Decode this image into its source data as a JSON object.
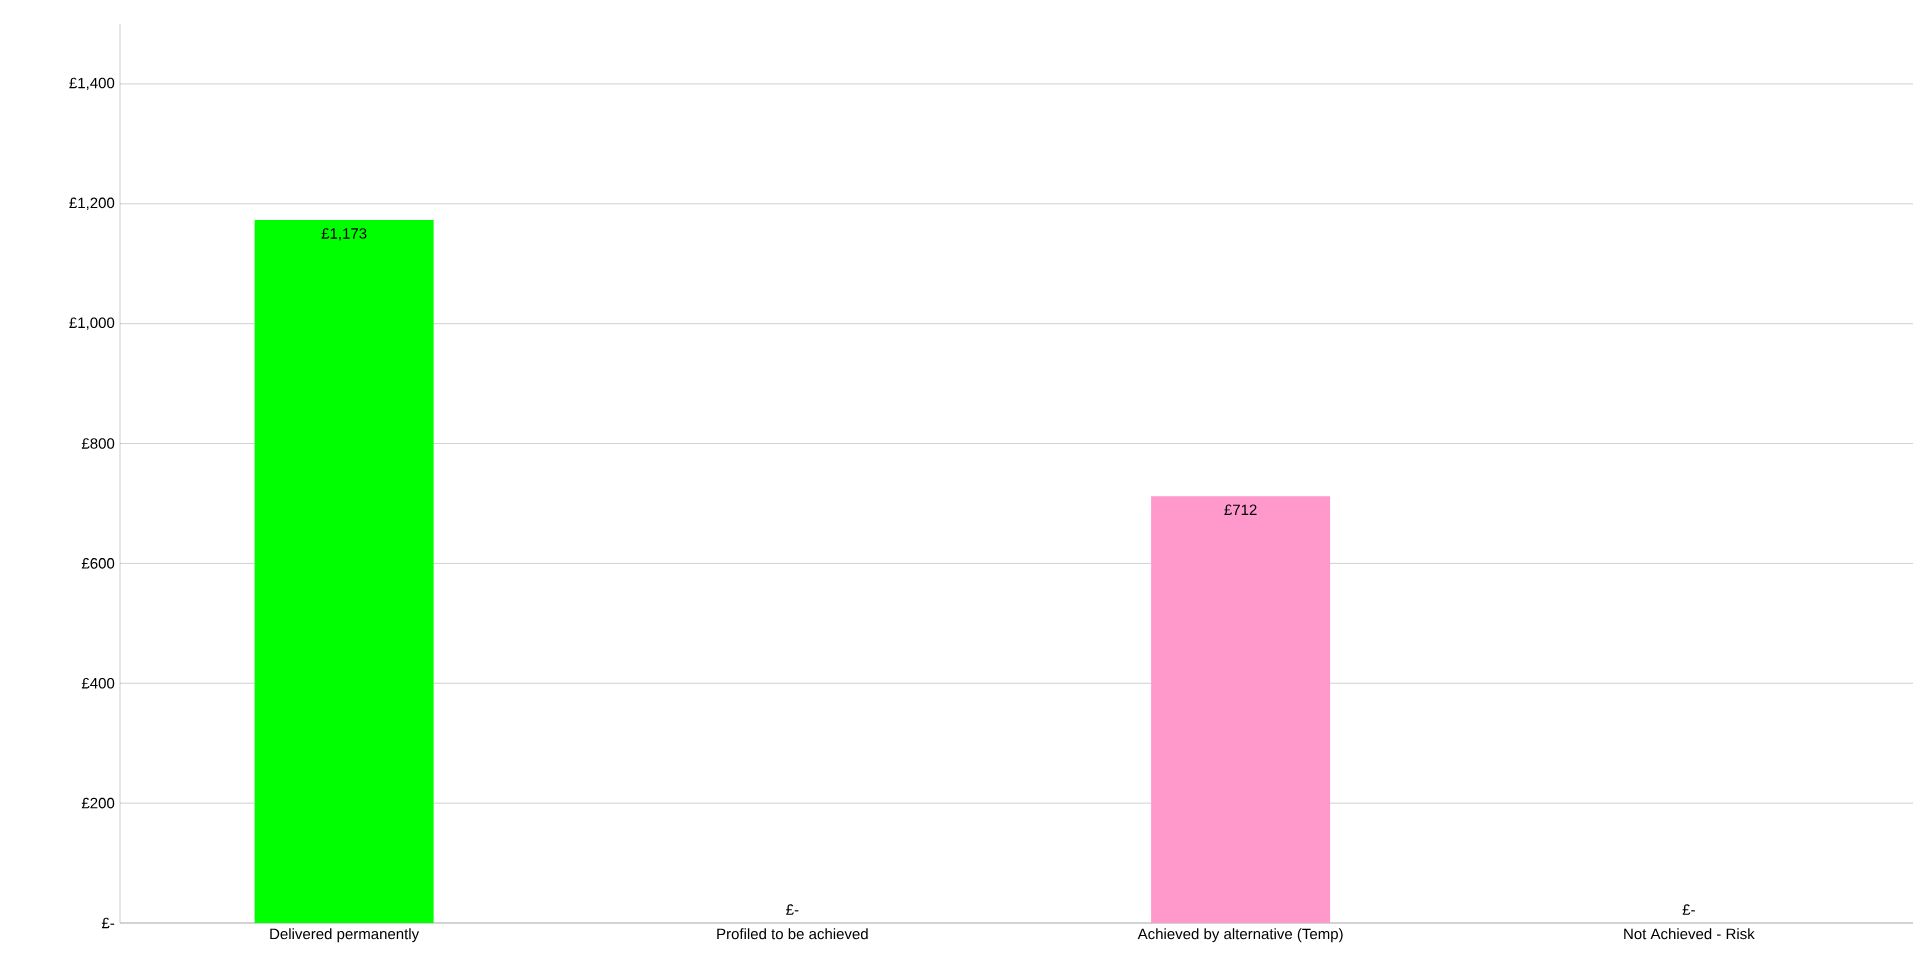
{
  "chart_data": {
    "type": "bar",
    "categories": [
      "Delivered permanently",
      "Profiled to be achieved",
      "Achieved by alternative (Temp)",
      "Not Achieved - Risk"
    ],
    "values": [
      1173,
      0,
      712,
      0
    ],
    "colors": [
      "#00ff00",
      "#ff99cc",
      "#ff99cc",
      "#ff99cc"
    ],
    "value_labels": [
      "£1,173",
      "£-",
      "£712",
      "£-"
    ],
    "ylim": [
      0,
      1500
    ],
    "yticks": [
      {
        "value": 0,
        "label": "£-"
      },
      {
        "value": 200,
        "label": "£200"
      },
      {
        "value": 400,
        "label": "£400"
      },
      {
        "value": 600,
        "label": "£600"
      },
      {
        "value": 800,
        "label": "£800"
      },
      {
        "value": 1000,
        "label": "£1,000"
      },
      {
        "value": 1200,
        "label": "£1,200"
      },
      {
        "value": 1400,
        "label": "£1,400"
      }
    ],
    "grid": "y"
  }
}
